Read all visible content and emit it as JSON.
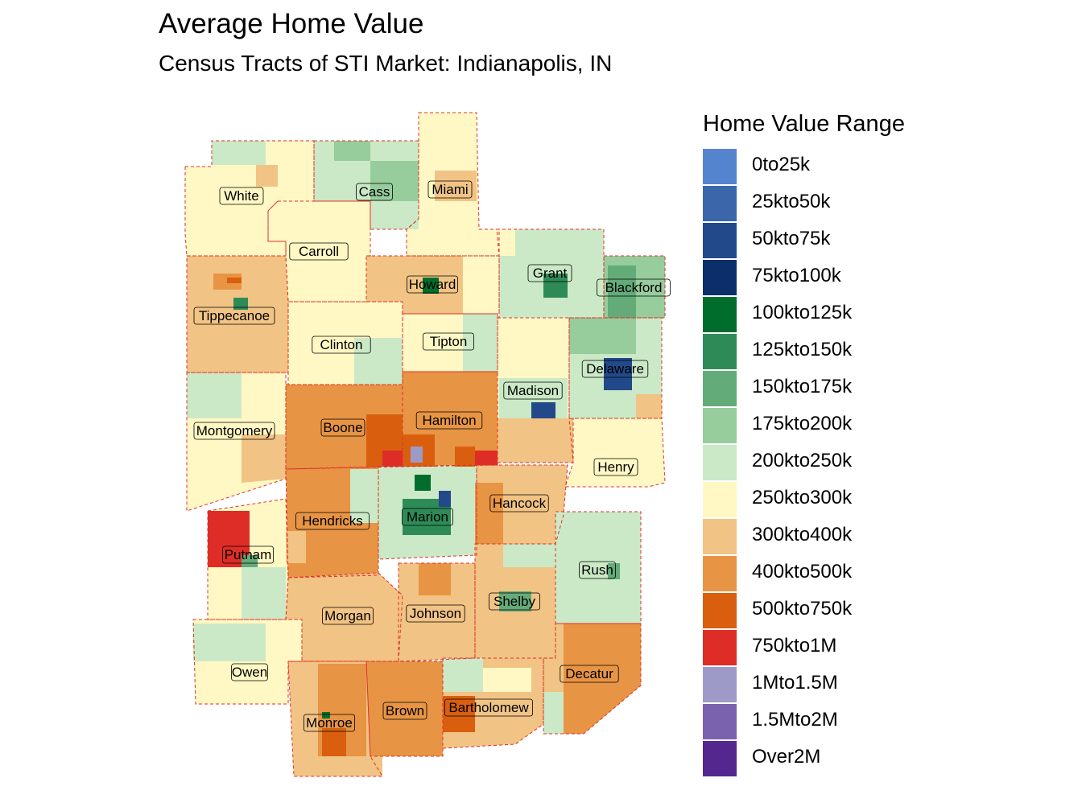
{
  "title": "Average Home Value",
  "subtitle": "Census Tracts of STI Market: Indianapolis, IN",
  "legend": {
    "title": "Home Value Range",
    "items": [
      {
        "label": "0to25k",
        "color": "#5584CF"
      },
      {
        "label": "25kto50k",
        "color": "#3B67AA"
      },
      {
        "label": "50kto75k",
        "color": "#22498A"
      },
      {
        "label": "75kto100k",
        "color": "#0C2E6A"
      },
      {
        "label": "100kto125k",
        "color": "#006D2C"
      },
      {
        "label": "125kto150k",
        "color": "#2E8B57"
      },
      {
        "label": "150kto175k",
        "color": "#63AB78"
      },
      {
        "label": "175kto200k",
        "color": "#97CC9C"
      },
      {
        "label": "200kto250k",
        "color": "#CBE9C6"
      },
      {
        "label": "250kto300k",
        "color": "#FFF8C4"
      },
      {
        "label": "300kto400k",
        "color": "#F1C384"
      },
      {
        "label": "400kto500k",
        "color": "#E79444"
      },
      {
        "label": "500kto750k",
        "color": "#D95F0E"
      },
      {
        "label": "750kto1M",
        "color": "#DE2D26"
      },
      {
        "label": "1Mto1.5M",
        "color": "#9E9AC8"
      },
      {
        "label": "1.5Mto2M",
        "color": "#7B62AE"
      },
      {
        "label": "Over2M",
        "color": "#54278F"
      }
    ]
  },
  "counties": [
    {
      "name": "White",
      "range": "250kto300k"
    },
    {
      "name": "Cass",
      "range": "200kto250k"
    },
    {
      "name": "Miami",
      "range": "250kto300k"
    },
    {
      "name": "Carroll",
      "range": "250kto300k"
    },
    {
      "name": "Howard",
      "range": "300kto400k"
    },
    {
      "name": "Grant",
      "range": "200kto250k"
    },
    {
      "name": "Blackford",
      "range": "175kto200k"
    },
    {
      "name": "Tippecanoe",
      "range": "300kto400k"
    },
    {
      "name": "Clinton",
      "range": "250kto300k"
    },
    {
      "name": "Tipton",
      "range": "250kto300k"
    },
    {
      "name": "Delaware",
      "range": "200kto250k"
    },
    {
      "name": "Madison",
      "range": "250kto300k"
    },
    {
      "name": "Montgomery",
      "range": "250kto300k"
    },
    {
      "name": "Boone",
      "range": "400kto500k"
    },
    {
      "name": "Hamilton",
      "range": "400kto500k"
    },
    {
      "name": "Henry",
      "range": "250kto300k"
    },
    {
      "name": "Hendricks",
      "range": "400kto500k"
    },
    {
      "name": "Marion",
      "range": "200kto250k"
    },
    {
      "name": "Hancock",
      "range": "300kto400k"
    },
    {
      "name": "Putnam",
      "range": "250kto300k"
    },
    {
      "name": "Rush",
      "range": "200kto250k"
    },
    {
      "name": "Morgan",
      "range": "300kto400k"
    },
    {
      "name": "Johnson",
      "range": "300kto400k"
    },
    {
      "name": "Shelby",
      "range": "300kto400k"
    },
    {
      "name": "Owen",
      "range": "250kto300k"
    },
    {
      "name": "Decatur",
      "range": "300kto400k"
    },
    {
      "name": "Brown",
      "range": "400kto500k"
    },
    {
      "name": "Bartholomew",
      "range": "300kto400k"
    },
    {
      "name": "Monroe",
      "range": "300kto400k"
    }
  ]
}
